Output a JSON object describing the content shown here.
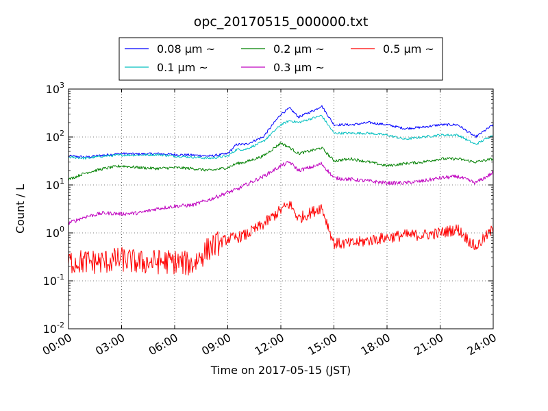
{
  "chart_data": {
    "type": "line",
    "title": "opc_20170515_000000.txt",
    "xlabel": "Time on 2017-05-15 (JST)",
    "ylabel": "Count / L",
    "x_ticks": [
      "00:00",
      "03:00",
      "06:00",
      "09:00",
      "12:00",
      "15:00",
      "18:00",
      "21:00",
      "24:00"
    ],
    "y_scale": "log",
    "ylim": [
      0.01,
      1000
    ],
    "y_ticks": [
      {
        "base": "10",
        "exp": "-2"
      },
      {
        "base": "10",
        "exp": "-1"
      },
      {
        "base": "10",
        "exp": "0"
      },
      {
        "base": "10",
        "exp": "1"
      },
      {
        "base": "10",
        "exp": "2"
      },
      {
        "base": "10",
        "exp": "3"
      }
    ],
    "grid": true,
    "legend_position": "top-center",
    "x_hours": [
      0,
      1,
      2,
      3,
      4,
      5,
      6,
      7,
      8,
      9,
      9.5,
      10,
      11,
      12,
      12.5,
      13,
      14,
      14.3,
      15,
      16,
      17,
      18,
      19,
      20,
      21,
      22,
      23,
      24
    ],
    "series": [
      {
        "name": "0.08 μm ~",
        "color": "#0000ff",
        "values": [
          40,
          38,
          42,
          45,
          44,
          45,
          43,
          42,
          40,
          45,
          70,
          70,
          100,
          300,
          400,
          260,
          380,
          450,
          180,
          180,
          200,
          180,
          150,
          160,
          180,
          180,
          100,
          180
        ]
      },
      {
        "name": "0.1 μm ~",
        "color": "#00bfbf",
        "values": [
          38,
          36,
          40,
          42,
          42,
          43,
          40,
          38,
          36,
          40,
          55,
          55,
          80,
          180,
          220,
          200,
          260,
          280,
          120,
          120,
          120,
          110,
          90,
          100,
          110,
          110,
          70,
          110
        ]
      },
      {
        "name": "0.2 μm ~",
        "color": "#008000",
        "values": [
          13,
          18,
          22,
          25,
          23,
          22,
          23,
          22,
          20,
          23,
          28,
          30,
          40,
          75,
          60,
          45,
          55,
          60,
          32,
          35,
          30,
          25,
          28,
          30,
          35,
          35,
          30,
          35
        ]
      },
      {
        "name": "0.3 μm ~",
        "color": "#bf00bf",
        "values": [
          1.6,
          2.2,
          2.6,
          2.5,
          2.6,
          3.2,
          3.6,
          3.8,
          5,
          7,
          8,
          10,
          15,
          25,
          30,
          20,
          25,
          28,
          14,
          13,
          12,
          11,
          11,
          12,
          14,
          15,
          11,
          18
        ]
      },
      {
        "name": "0.5 μm ~",
        "color": "#ff0000",
        "values": [
          0.25,
          0.25,
          0.25,
          0.28,
          0.24,
          0.25,
          0.25,
          0.22,
          0.5,
          0.75,
          0.8,
          0.9,
          1.5,
          3,
          4,
          2,
          3,
          3.5,
          0.6,
          0.6,
          0.7,
          0.8,
          0.9,
          0.9,
          1.0,
          1.2,
          0.5,
          1.2
        ]
      }
    ]
  }
}
